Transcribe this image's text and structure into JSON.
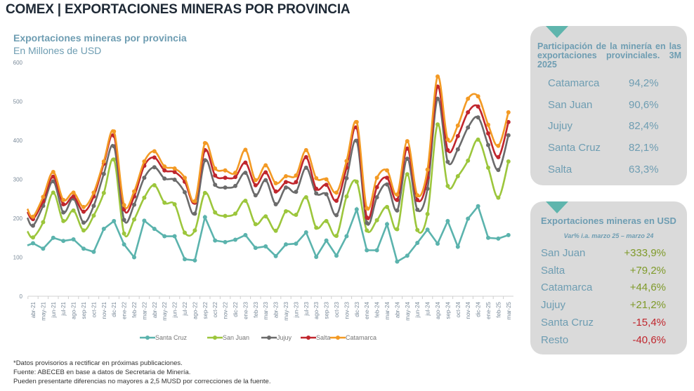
{
  "header": {
    "title": "COMEX | EXPORTACIONES MINERAS POR PROVINCIA"
  },
  "chart_data": {
    "type": "line",
    "title": "Exportaciones mineras por provincia",
    "subtitle": "En Millones de USD",
    "ylim": [
      0,
      600
    ],
    "yticks": [
      0,
      100,
      200,
      300,
      400,
      500,
      600
    ],
    "legend": "bottom",
    "grid": false,
    "categories": [
      "abr-21",
      "may-21",
      "jun-21",
      "jul-21",
      "ago-21",
      "sep-21",
      "oct-21",
      "nov-21",
      "dic-21",
      "ene-22",
      "feb-22",
      "mar-22",
      "abr-22",
      "may-22",
      "jun-22",
      "jul-22",
      "ago-22",
      "sep-22",
      "oct-22",
      "nov-22",
      "dic-22",
      "ene-23",
      "feb-23",
      "mar-23",
      "abr-23",
      "may-23",
      "jun-23",
      "jul-23",
      "ago-23",
      "sep-23",
      "oct-23",
      "nov-23",
      "dic-23",
      "ene-24",
      "feb-24",
      "mar-24",
      "abr-24",
      "may-24",
      "jun-24",
      "jul-24",
      "ago-24",
      "sep-24",
      "oct-24",
      "nov-24",
      "dic-24",
      "ene-25",
      "feb-25",
      "mar-25"
    ],
    "series": [
      {
        "name": "Santa Cruz",
        "color": "#5bb3ad",
        "smooth": false,
        "values": [
          136,
          122,
          150,
          142,
          146,
          122,
          114,
          173,
          193,
          133,
          100,
          194,
          173,
          154,
          154,
          95,
          92,
          203,
          143,
          139,
          145,
          157,
          124,
          128,
          103,
          133,
          135,
          164,
          101,
          143,
          104,
          154,
          223,
          118,
          118,
          185,
          89,
          104,
          137,
          171,
          135,
          193,
          127,
          199,
          231,
          150,
          148,
          157
        ]
      },
      {
        "name": "San Juan",
        "color": "#9cc63c",
        "smooth": true,
        "values": [
          151,
          190,
          266,
          193,
          220,
          169,
          207,
          265,
          351,
          161,
          197,
          253,
          285,
          240,
          236,
          163,
          169,
          265,
          215,
          206,
          212,
          245,
          185,
          205,
          168,
          218,
          209,
          254,
          176,
          193,
          155,
          256,
          294,
          169,
          195,
          229,
          172,
          313,
          170,
          211,
          441,
          283,
          308,
          348,
          402,
          330,
          253,
          346
        ]
      },
      {
        "name": "Jujuy",
        "color": "#6b6b6b",
        "smooth": true,
        "values": [
          181,
          232,
          295,
          215,
          251,
          189,
          232,
          314,
          385,
          196,
          235,
          304,
          331,
          302,
          299,
          267,
          212,
          349,
          286,
          279,
          283,
          317,
          259,
          298,
          236,
          279,
          268,
          330,
          264,
          262,
          208,
          303,
          399,
          188,
          254,
          287,
          220,
          353,
          222,
          276,
          507,
          345,
          377,
          433,
          459,
          388,
          324,
          413
        ]
      },
      {
        "name": "Salta",
        "color": "#c0262d",
        "smooth": true,
        "values": [
          198,
          244,
          307,
          236,
          256,
          217,
          256,
          340,
          412,
          223,
          256,
          335,
          356,
          323,
          319,
          294,
          240,
          375,
          310,
          304,
          306,
          343,
          285,
          318,
          269,
          293,
          293,
          357,
          276,
          286,
          245,
          330,
          433,
          202,
          280,
          304,
          247,
          379,
          247,
          304,
          538,
          375,
          411,
          472,
          487,
          418,
          357,
          447
        ]
      },
      {
        "name": "Catamarca",
        "color": "#f39a24",
        "smooth": true,
        "values": [
          204,
          255,
          319,
          247,
          266,
          229,
          266,
          346,
          423,
          234,
          269,
          346,
          372,
          333,
          328,
          304,
          244,
          393,
          328,
          323,
          317,
          376,
          298,
          336,
          290,
          308,
          310,
          375,
          303,
          300,
          266,
          347,
          447,
          226,
          304,
          323,
          261,
          398,
          259,
          325,
          564,
          402,
          438,
          507,
          513,
          440,
          386,
          472
        ]
      }
    ]
  },
  "panel_participation": {
    "title": "Participación de la minería en las exportaciones provinciales. 3M 2025",
    "rows": [
      {
        "label": "Catamarca",
        "value": "94,2%"
      },
      {
        "label": "San Juan",
        "value": "90,6%"
      },
      {
        "label": "Jujuy",
        "value": "82,4%"
      },
      {
        "label": "Santa Cruz",
        "value": "82,1%"
      },
      {
        "label": "Salta",
        "value": "63,3%"
      }
    ]
  },
  "panel_usd": {
    "title": "Exportaciones mineras en USD",
    "subtitle": "Var% i.a. marzo 25 – marzo 24",
    "positive_color": "#7f9a2a",
    "negative_color": "#c0262d",
    "rows": [
      {
        "label": "San Juan",
        "value": "+333,9%"
      },
      {
        "label": "Salta",
        "value": "+79,2%"
      },
      {
        "label": "Catamarca",
        "value": "+44,6%"
      },
      {
        "label": "Jujuy",
        "value": "+21,2%"
      },
      {
        "label": "Santa Cruz",
        "value": "-15,4%"
      },
      {
        "label": "Resto",
        "value": "-40,6%"
      }
    ]
  },
  "notes": [
    "*Datos provisorios a rectificar en próximas publicaciones.",
    "Fuente: ABECEB en base a datos de Secretaria de Minería.",
    "Pueden presentarte diferencias no mayores a 2,5 MUSD por correcciones de la fuente."
  ]
}
